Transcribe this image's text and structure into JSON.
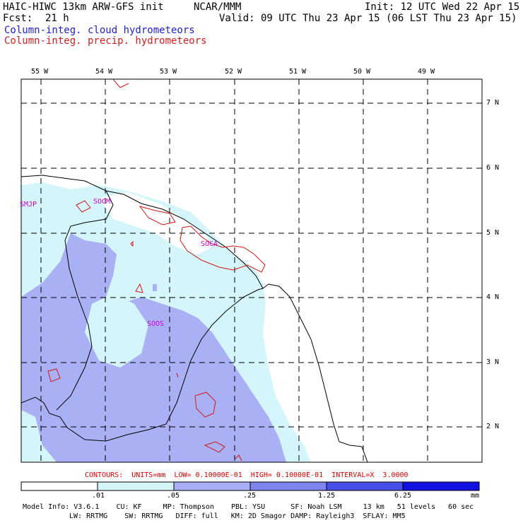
{
  "header": {
    "title": "HAIC-HIWC 13km ARW-GFS init",
    "org": "NCAR/MMM",
    "init": "Init: 12 UTC Wed 22 Apr 15",
    "fcst_label": "Fcst:",
    "fcst_value": "21 h",
    "valid": "Valid: 09 UTC Thu 23 Apr 15 (06 LST Thu 23 Apr 15)",
    "field1": "Column-integ. cloud hydrometeors",
    "field2": "Column-integ. precip. hydrometeors"
  },
  "map": {
    "lon_labels": [
      "55 W",
      "54 W",
      "53 W",
      "52 W",
      "51 W",
      "50 W",
      "49 W"
    ],
    "lat_labels": [
      "7 N",
      "6 N",
      "5 N",
      "4 N",
      "3 N",
      "2 N"
    ],
    "stations": [
      "SMJP",
      "SOCM",
      "SOCA",
      "SOOS"
    ],
    "colors": {
      "level1": "#d4f6fa",
      "level2": "#aab0f4",
      "contour": "#d01818",
      "coast": "#000000",
      "station": "#d000d0"
    }
  },
  "contours_info": "CONTOURS:  UNITS=mm  LOW= 0.10000E-01  HIGH= 0.10000E-01  INTERVAL=X  3.0000",
  "colorbar": {
    "ticks": [
      ".01",
      ".05",
      ".25",
      "1.25",
      "6.25"
    ],
    "unit": "mm",
    "colors": [
      "#ffffff",
      "#d4f6fa",
      "#aab0f4",
      "#7f84ee",
      "#4a4ee8",
      "#1010e0"
    ]
  },
  "footer": {
    "line1": "Model Info: V3.6.1    CU: KF     MP: Thompson    PBL: YSU      SF: Noah LSM     13 km   51 levels   60 sec",
    "line2": "LW: RRTMG    SW: RRTMG   DIFF: full   KM: 2D Smagor DAMP: Rayleigh3  SFLAY: MM5"
  }
}
